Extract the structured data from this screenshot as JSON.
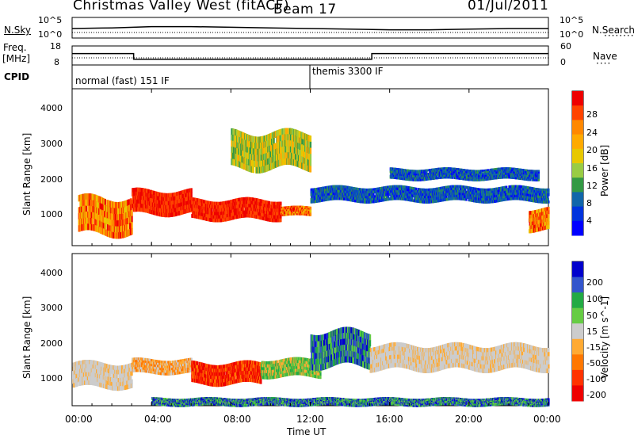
{
  "header": {
    "station": "Christmas Valley West (fitACF)",
    "beam": "Beam 17",
    "date": "01/Jul/2011"
  },
  "noise_panel": {
    "left_label": "N.Sky",
    "right_label": "N.Search",
    "left_ticks": [
      "10^5",
      "10^0"
    ],
    "right_ticks": [
      "10^5",
      "10^0"
    ]
  },
  "freq_panel": {
    "left_label": "Freq.",
    "left_unit": "[MHz]",
    "right_label": "Nave",
    "left_ticks": [
      "18",
      "8"
    ],
    "right_ticks": [
      "60",
      "0"
    ]
  },
  "cpid": {
    "label": "CPID",
    "modes": [
      {
        "name": "normal (fast) 151 IF",
        "start": "00:00"
      },
      {
        "name": "themis 3300 IF",
        "start": "12:00"
      }
    ]
  },
  "power_panel": {
    "ylabel": "Slant Range [km]",
    "yticks": [
      1000,
      2000,
      3000,
      4000
    ],
    "colorbar_label": "Power [dB]",
    "colorbar_ticks": [
      "28",
      "24",
      "20",
      "16",
      "12",
      "8",
      "4"
    ],
    "colors": [
      "#ee0000",
      "#ff4400",
      "#ff8800",
      "#ffaa00",
      "#e8c800",
      "#99cc44",
      "#339944",
      "#1166aa",
      "#0033dd",
      "#0000ff"
    ]
  },
  "velocity_panel": {
    "ylabel": "Slant Range [km]",
    "yticks": [
      1000,
      2000,
      3000,
      4000
    ],
    "colorbar_label": "Velocity [m s^-1]",
    "colorbar_ticks": [
      "200",
      "100",
      "50",
      "15",
      "-15",
      "-50",
      "-100",
      "-200"
    ],
    "colors": [
      "#0000cc",
      "#3355cc",
      "#22aa44",
      "#66cc44",
      "#cccccc",
      "#ffaa33",
      "#ff7700",
      "#ff3300",
      "#ee0000"
    ]
  },
  "x_axis": {
    "label": "Time UT",
    "ticks": [
      "00:00",
      "04:00",
      "08:00",
      "12:00",
      "16:00",
      "20:00",
      "00:00"
    ]
  },
  "chart_data": [
    {
      "type": "line",
      "name": "Noise",
      "x_hours": [
        0,
        2,
        4,
        6,
        8,
        10,
        12,
        14,
        16,
        18,
        20,
        22,
        24
      ],
      "series": [
        {
          "name": "N.Sky",
          "values": [
            1.5,
            1.6,
            1.8,
            1.8,
            1.7,
            1.6,
            1.5,
            1.4,
            1.3,
            1.3,
            1.4,
            1.5,
            1.5
          ]
        }
      ]
    },
    {
      "type": "line",
      "name": "Frequency / Nave",
      "x_hours": [
        0,
        3.1,
        3.1,
        15.1,
        15.1,
        24
      ],
      "series": [
        {
          "name": "Freq.",
          "values": [
            14,
            14,
            11,
            11,
            14,
            14
          ]
        }
      ],
      "ylim": [
        8,
        18
      ]
    },
    {
      "type": "heatmap",
      "name": "Power",
      "x_range_hours": [
        0,
        24
      ],
      "y_range_km": [
        180,
        4500
      ],
      "echo_regions": [
        {
          "t0": 0.3,
          "t1": 3.0,
          "r0": 500,
          "r1": 1500,
          "level": "high"
        },
        {
          "t0": 3.0,
          "t1": 6.0,
          "r0": 1050,
          "r1": 1700,
          "level": "max"
        },
        {
          "t0": 6.0,
          "t1": 10.5,
          "r0": 900,
          "r1": 1450,
          "level": "max"
        },
        {
          "t0": 10.5,
          "t1": 12.0,
          "r0": 1000,
          "r1": 1250,
          "level": "high"
        },
        {
          "t0": 8.0,
          "t1": 12.0,
          "r0": 2300,
          "r1": 3300,
          "level": "mid"
        },
        {
          "t0": 12.0,
          "t1": 24.0,
          "r0": 1400,
          "r1": 1800,
          "level": "low"
        },
        {
          "t0": 16.0,
          "t1": 23.5,
          "r0": 2000,
          "r1": 2300,
          "level": "low"
        },
        {
          "t0": 23.0,
          "t1": 24.0,
          "r0": 600,
          "r1": 1200,
          "level": "high"
        }
      ]
    },
    {
      "type": "heatmap",
      "name": "Velocity",
      "x_range_hours": [
        0,
        24
      ],
      "y_range_km": [
        180,
        4500
      ],
      "echo_regions": [
        {
          "t0": 0.0,
          "t1": 3.0,
          "r0": 700,
          "r1": 1400,
          "level": "ground"
        },
        {
          "t0": 3.0,
          "t1": 6.0,
          "r0": 1100,
          "r1": 1500,
          "level": "neg-low"
        },
        {
          "t0": 6.0,
          "t1": 9.5,
          "r0": 800,
          "r1": 1400,
          "level": "neg-high"
        },
        {
          "t0": 9.5,
          "t1": 12.5,
          "r0": 1000,
          "r1": 1500,
          "level": "pos-low"
        },
        {
          "t0": 12.0,
          "t1": 15.0,
          "r0": 1300,
          "r1": 2300,
          "level": "pos-mid"
        },
        {
          "t0": 15.0,
          "t1": 24.0,
          "r0": 1200,
          "r1": 1900,
          "level": "ground"
        },
        {
          "t0": 4.0,
          "t1": 24.0,
          "r0": 180,
          "r1": 400,
          "level": "pos-mid"
        }
      ]
    }
  ]
}
